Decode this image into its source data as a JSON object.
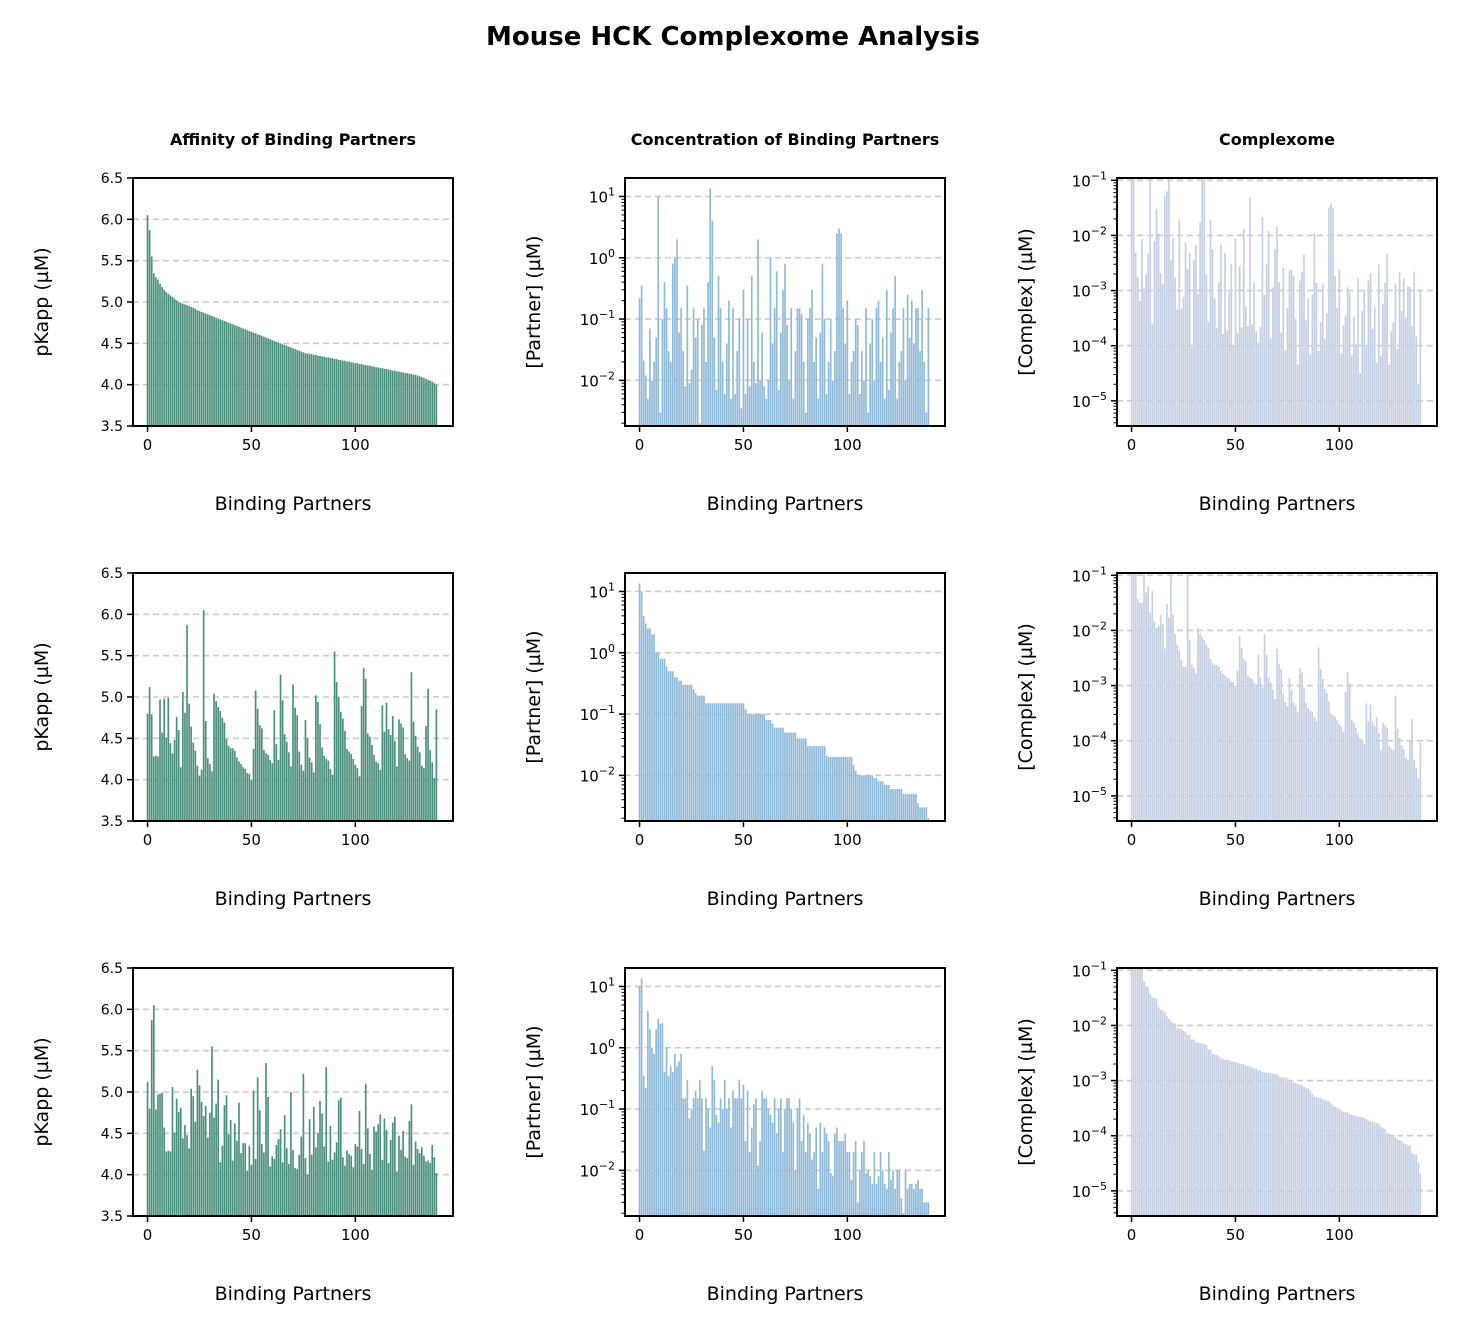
{
  "figure": {
    "title": "Mouse HCK Complexome Analysis",
    "column_titles": [
      "Affinity of Binding Partners",
      "Concentration of Binding Partners",
      "Complexome"
    ]
  },
  "chart_data": [
    {
      "panel": "r1c1",
      "type": "bar",
      "metric": "affinity",
      "sort": "affinity",
      "ylabel": "pKapp (µM)",
      "xlabel": "Binding Partners",
      "ylim": [
        3.5,
        6.5
      ],
      "yticks": [
        3.5,
        4.0,
        4.5,
        5.0,
        5.5,
        6.0,
        6.5
      ],
      "xlim": [
        -7,
        147
      ],
      "xticks": [
        0,
        50,
        100
      ],
      "color": "#4a8f7d"
    },
    {
      "panel": "r1c2",
      "type": "bar",
      "metric": "concentration",
      "sort": "affinity",
      "yscale": "log",
      "ylabel": "[Partner] (µM)",
      "xlabel": "Binding Partners",
      "ylim": [
        0.0018,
        20
      ],
      "yticks": [
        0.01,
        0.1,
        1,
        10
      ],
      "xlim": [
        -7,
        147
      ],
      "xticks": [
        0,
        50,
        100
      ],
      "color": "#8fb9d8"
    },
    {
      "panel": "r1c3",
      "type": "bar",
      "metric": "complex",
      "sort": "affinity",
      "yscale": "log",
      "ylabel": "[Complex] (µM)",
      "xlabel": "Binding Partners",
      "ylim": [
        3.5e-06,
        0.11
      ],
      "yticks": [
        1e-05,
        0.0001,
        0.001,
        0.01,
        0.1
      ],
      "xlim": [
        -7,
        147
      ],
      "xticks": [
        0,
        50,
        100
      ],
      "color": "#c5cfe3"
    },
    {
      "panel": "r2c1",
      "type": "bar",
      "metric": "affinity",
      "sort": "concentration",
      "ylabel": "pKapp (µM)",
      "xlabel": "Binding Partners",
      "ylim": [
        3.5,
        6.5
      ],
      "yticks": [
        3.5,
        4.0,
        4.5,
        5.0,
        5.5,
        6.0,
        6.5
      ],
      "xlim": [
        -7,
        147
      ],
      "xticks": [
        0,
        50,
        100
      ],
      "color": "#4a8f7d"
    },
    {
      "panel": "r2c2",
      "type": "bar",
      "metric": "concentration",
      "sort": "concentration",
      "yscale": "log",
      "ylabel": "[Partner] (µM)",
      "xlabel": "Binding Partners",
      "ylim": [
        0.0018,
        20
      ],
      "yticks": [
        0.01,
        0.1,
        1,
        10
      ],
      "xlim": [
        -7,
        147
      ],
      "xticks": [
        0,
        50,
        100
      ],
      "color": "#8fb9d8"
    },
    {
      "panel": "r2c3",
      "type": "bar",
      "metric": "complex",
      "sort": "concentration",
      "yscale": "log",
      "ylabel": "[Complex] (µM)",
      "xlabel": "Binding Partners",
      "ylim": [
        3.5e-06,
        0.11
      ],
      "yticks": [
        1e-05,
        0.0001,
        0.001,
        0.01,
        0.1
      ],
      "xlim": [
        -7,
        147
      ],
      "xticks": [
        0,
        50,
        100
      ],
      "color": "#c5cfe3"
    },
    {
      "panel": "r3c1",
      "type": "bar",
      "metric": "affinity",
      "sort": "complex",
      "ylabel": "pKapp (µM)",
      "xlabel": "Binding Partners",
      "ylim": [
        3.5,
        6.5
      ],
      "yticks": [
        3.5,
        4.0,
        4.5,
        5.0,
        5.5,
        6.0,
        6.5
      ],
      "xlim": [
        -7,
        147
      ],
      "xticks": [
        0,
        50,
        100
      ],
      "color": "#4a8f7d"
    },
    {
      "panel": "r3c2",
      "type": "bar",
      "metric": "concentration",
      "sort": "complex",
      "yscale": "log",
      "ylabel": "[Partner] (µM)",
      "xlabel": "Binding Partners",
      "ylim": [
        0.0018,
        20
      ],
      "yticks": [
        0.01,
        0.1,
        1,
        10
      ],
      "xlim": [
        -7,
        147
      ],
      "xticks": [
        0,
        50,
        100
      ],
      "color": "#8fb9d8"
    },
    {
      "panel": "r3c3",
      "type": "bar",
      "metric": "complex",
      "sort": "complex",
      "yscale": "log",
      "ylabel": "[Complex] (µM)",
      "xlabel": "Binding Partners",
      "ylim": [
        3.5e-06,
        0.11
      ],
      "yticks": [
        1e-05,
        0.0001,
        0.001,
        0.01,
        0.1
      ],
      "xlim": [
        -7,
        147
      ],
      "xticks": [
        0,
        50,
        100
      ],
      "color": "#c5cfe3"
    }
  ],
  "partners": {
    "count": 140,
    "pKapp": [
      6.05,
      5.87,
      5.55,
      5.35,
      5.3,
      5.27,
      5.22,
      5.18,
      5.15,
      5.12,
      5.1,
      5.08,
      5.06,
      5.04,
      5.02,
      5.0,
      4.99,
      4.98,
      4.97,
      4.96,
      4.95,
      4.94,
      4.93,
      4.92,
      4.9,
      4.89,
      4.88,
      4.87,
      4.86,
      4.85,
      4.84,
      4.83,
      4.82,
      4.81,
      4.8,
      4.79,
      4.78,
      4.77,
      4.76,
      4.75,
      4.74,
      4.73,
      4.72,
      4.71,
      4.7,
      4.69,
      4.68,
      4.67,
      4.66,
      4.65,
      4.64,
      4.63,
      4.62,
      4.61,
      4.6,
      4.59,
      4.58,
      4.57,
      4.56,
      4.55,
      4.54,
      4.53,
      4.52,
      4.51,
      4.5,
      4.49,
      4.48,
      4.47,
      4.46,
      4.45,
      4.44,
      4.43,
      4.42,
      4.41,
      4.4,
      4.39,
      4.38,
      4.38,
      4.37,
      4.37,
      4.36,
      4.36,
      4.35,
      4.35,
      4.34,
      4.34,
      4.33,
      4.33,
      4.32,
      4.32,
      4.31,
      4.31,
      4.3,
      4.3,
      4.29,
      4.29,
      4.28,
      4.28,
      4.27,
      4.27,
      4.26,
      4.26,
      4.25,
      4.25,
      4.24,
      4.24,
      4.23,
      4.23,
      4.22,
      4.22,
      4.21,
      4.21,
      4.2,
      4.2,
      4.19,
      4.19,
      4.18,
      4.18,
      4.17,
      4.17,
      4.16,
      4.16,
      4.15,
      4.15,
      4.14,
      4.14,
      4.13,
      4.13,
      4.12,
      4.12,
      4.11,
      4.1,
      4.09,
      4.08,
      4.07,
      4.06,
      4.05,
      4.04,
      4.02,
      4.0
    ],
    "concentration": [
      0.22,
      0.35,
      0.021,
      0.012,
      0.005,
      0.07,
      0.01,
      0.02,
      0.05,
      10.0,
      0.003,
      0.1,
      0.4,
      0.15,
      0.03,
      0.02,
      0.8,
      1.0,
      2.0,
      0.06,
      0.15,
      0.03,
      0.008,
      0.35,
      0.009,
      0.015,
      0.15,
      0.05,
      0.1,
      0.002,
      0.08,
      0.15,
      0.02,
      0.4,
      13.5,
      4.0,
      0.05,
      0.007,
      0.5,
      0.15,
      0.02,
      0.006,
      0.04,
      0.2,
      0.005,
      0.15,
      0.006,
      0.03,
      0.1,
      0.0035,
      0.3,
      0.006,
      0.1,
      0.008,
      0.5,
      0.02,
      0.009,
      2.0,
      0.01,
      0.06,
      0.008,
      0.005,
      0.01,
      1.0,
      0.04,
      0.15,
      0.6,
      0.007,
      0.06,
      0.3,
      0.8,
      0.08,
      0.01,
      0.15,
      0.005,
      0.03,
      0.15,
      0.15,
      0.12,
      0.02,
      0.003,
      0.1,
      0.15,
      0.3,
      0.02,
      0.05,
      0.005,
      0.06,
      0.8,
      0.1,
      0.006,
      0.02,
      0.1,
      0.01,
      0.03,
      2.5,
      3.0,
      2.5,
      0.15,
      0.04,
      0.2,
      0.006,
      0.02,
      0.03,
      0.1,
      0.08,
      0.006,
      0.03,
      0.01,
      0.15,
      0.003,
      0.04,
      0.1,
      0.01,
      0.15,
      0.2,
      0.02,
      0.05,
      0.005,
      0.3,
      0.007,
      0.06,
      0.15,
      0.5,
      0.005,
      0.02,
      0.03,
      0.15,
      0.01,
      0.25,
      0.05,
      0.2,
      0.04,
      0.15,
      0.15,
      0.03,
      0.3,
      0.02,
      0.003,
      0.15
    ]
  }
}
